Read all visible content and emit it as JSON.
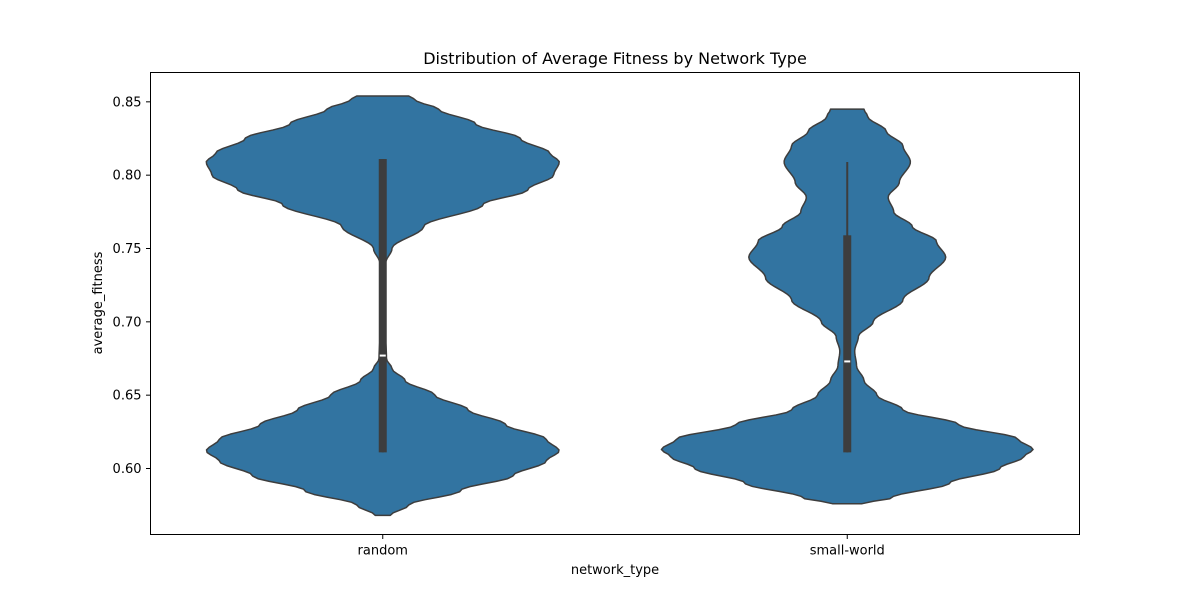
{
  "chart_data": {
    "type": "violin",
    "title": "Distribution of Average Fitness by Network Type",
    "xlabel": "network_type",
    "ylabel": "average_fitness",
    "categories": [
      "random",
      "small-world"
    ],
    "ylim": [
      0.555,
      0.87
    ],
    "yticks": [
      "0.60",
      "0.65",
      "0.70",
      "0.75",
      "0.80",
      "0.85"
    ],
    "grid": false,
    "colors": {
      "violin_fill": "#3274a1",
      "violin_edge": "#3d3d3d",
      "box": "#3d3d3d",
      "median": "#ffffff"
    },
    "violins": [
      {
        "category": "random",
        "range": [
          0.568,
          0.854
        ],
        "density_profile": [
          [
            0.568,
            0.04
          ],
          [
            0.575,
            0.14
          ],
          [
            0.585,
            0.42
          ],
          [
            0.595,
            0.7
          ],
          [
            0.605,
            0.88
          ],
          [
            0.612,
            0.95
          ],
          [
            0.62,
            0.88
          ],
          [
            0.63,
            0.66
          ],
          [
            0.64,
            0.46
          ],
          [
            0.65,
            0.28
          ],
          [
            0.66,
            0.12
          ],
          [
            0.668,
            0.05
          ],
          [
            0.675,
            0.02
          ],
          [
            0.7,
            0.01
          ],
          [
            0.725,
            0.01
          ],
          [
            0.74,
            0.015
          ],
          [
            0.75,
            0.05
          ],
          [
            0.765,
            0.22
          ],
          [
            0.78,
            0.54
          ],
          [
            0.79,
            0.78
          ],
          [
            0.8,
            0.92
          ],
          [
            0.809,
            0.95
          ],
          [
            0.815,
            0.9
          ],
          [
            0.825,
            0.74
          ],
          [
            0.835,
            0.5
          ],
          [
            0.845,
            0.3
          ],
          [
            0.851,
            0.18
          ],
          [
            0.854,
            0.14
          ]
        ],
        "whisker": [
          0.611,
          0.811
        ],
        "iqr": [
          0.611,
          0.811
        ],
        "median": 0.677
      },
      {
        "category": "small-world",
        "range": [
          0.576,
          0.845
        ],
        "density_profile": [
          [
            0.576,
            0.08
          ],
          [
            0.58,
            0.24
          ],
          [
            0.59,
            0.55
          ],
          [
            0.6,
            0.82
          ],
          [
            0.608,
            0.95
          ],
          [
            0.613,
            1.0
          ],
          [
            0.62,
            0.92
          ],
          [
            0.63,
            0.6
          ],
          [
            0.64,
            0.3
          ],
          [
            0.65,
            0.16
          ],
          [
            0.66,
            0.09
          ],
          [
            0.67,
            0.05
          ],
          [
            0.68,
            0.04
          ],
          [
            0.69,
            0.06
          ],
          [
            0.7,
            0.14
          ],
          [
            0.715,
            0.3
          ],
          [
            0.73,
            0.44
          ],
          [
            0.744,
            0.53
          ],
          [
            0.755,
            0.48
          ],
          [
            0.765,
            0.35
          ],
          [
            0.775,
            0.25
          ],
          [
            0.785,
            0.22
          ],
          [
            0.795,
            0.28
          ],
          [
            0.809,
            0.34
          ],
          [
            0.82,
            0.3
          ],
          [
            0.83,
            0.21
          ],
          [
            0.84,
            0.11
          ],
          [
            0.845,
            0.09
          ]
        ],
        "whisker": [
          0.611,
          0.809
        ],
        "iqr": [
          0.611,
          0.759
        ],
        "median": 0.673
      }
    ]
  }
}
